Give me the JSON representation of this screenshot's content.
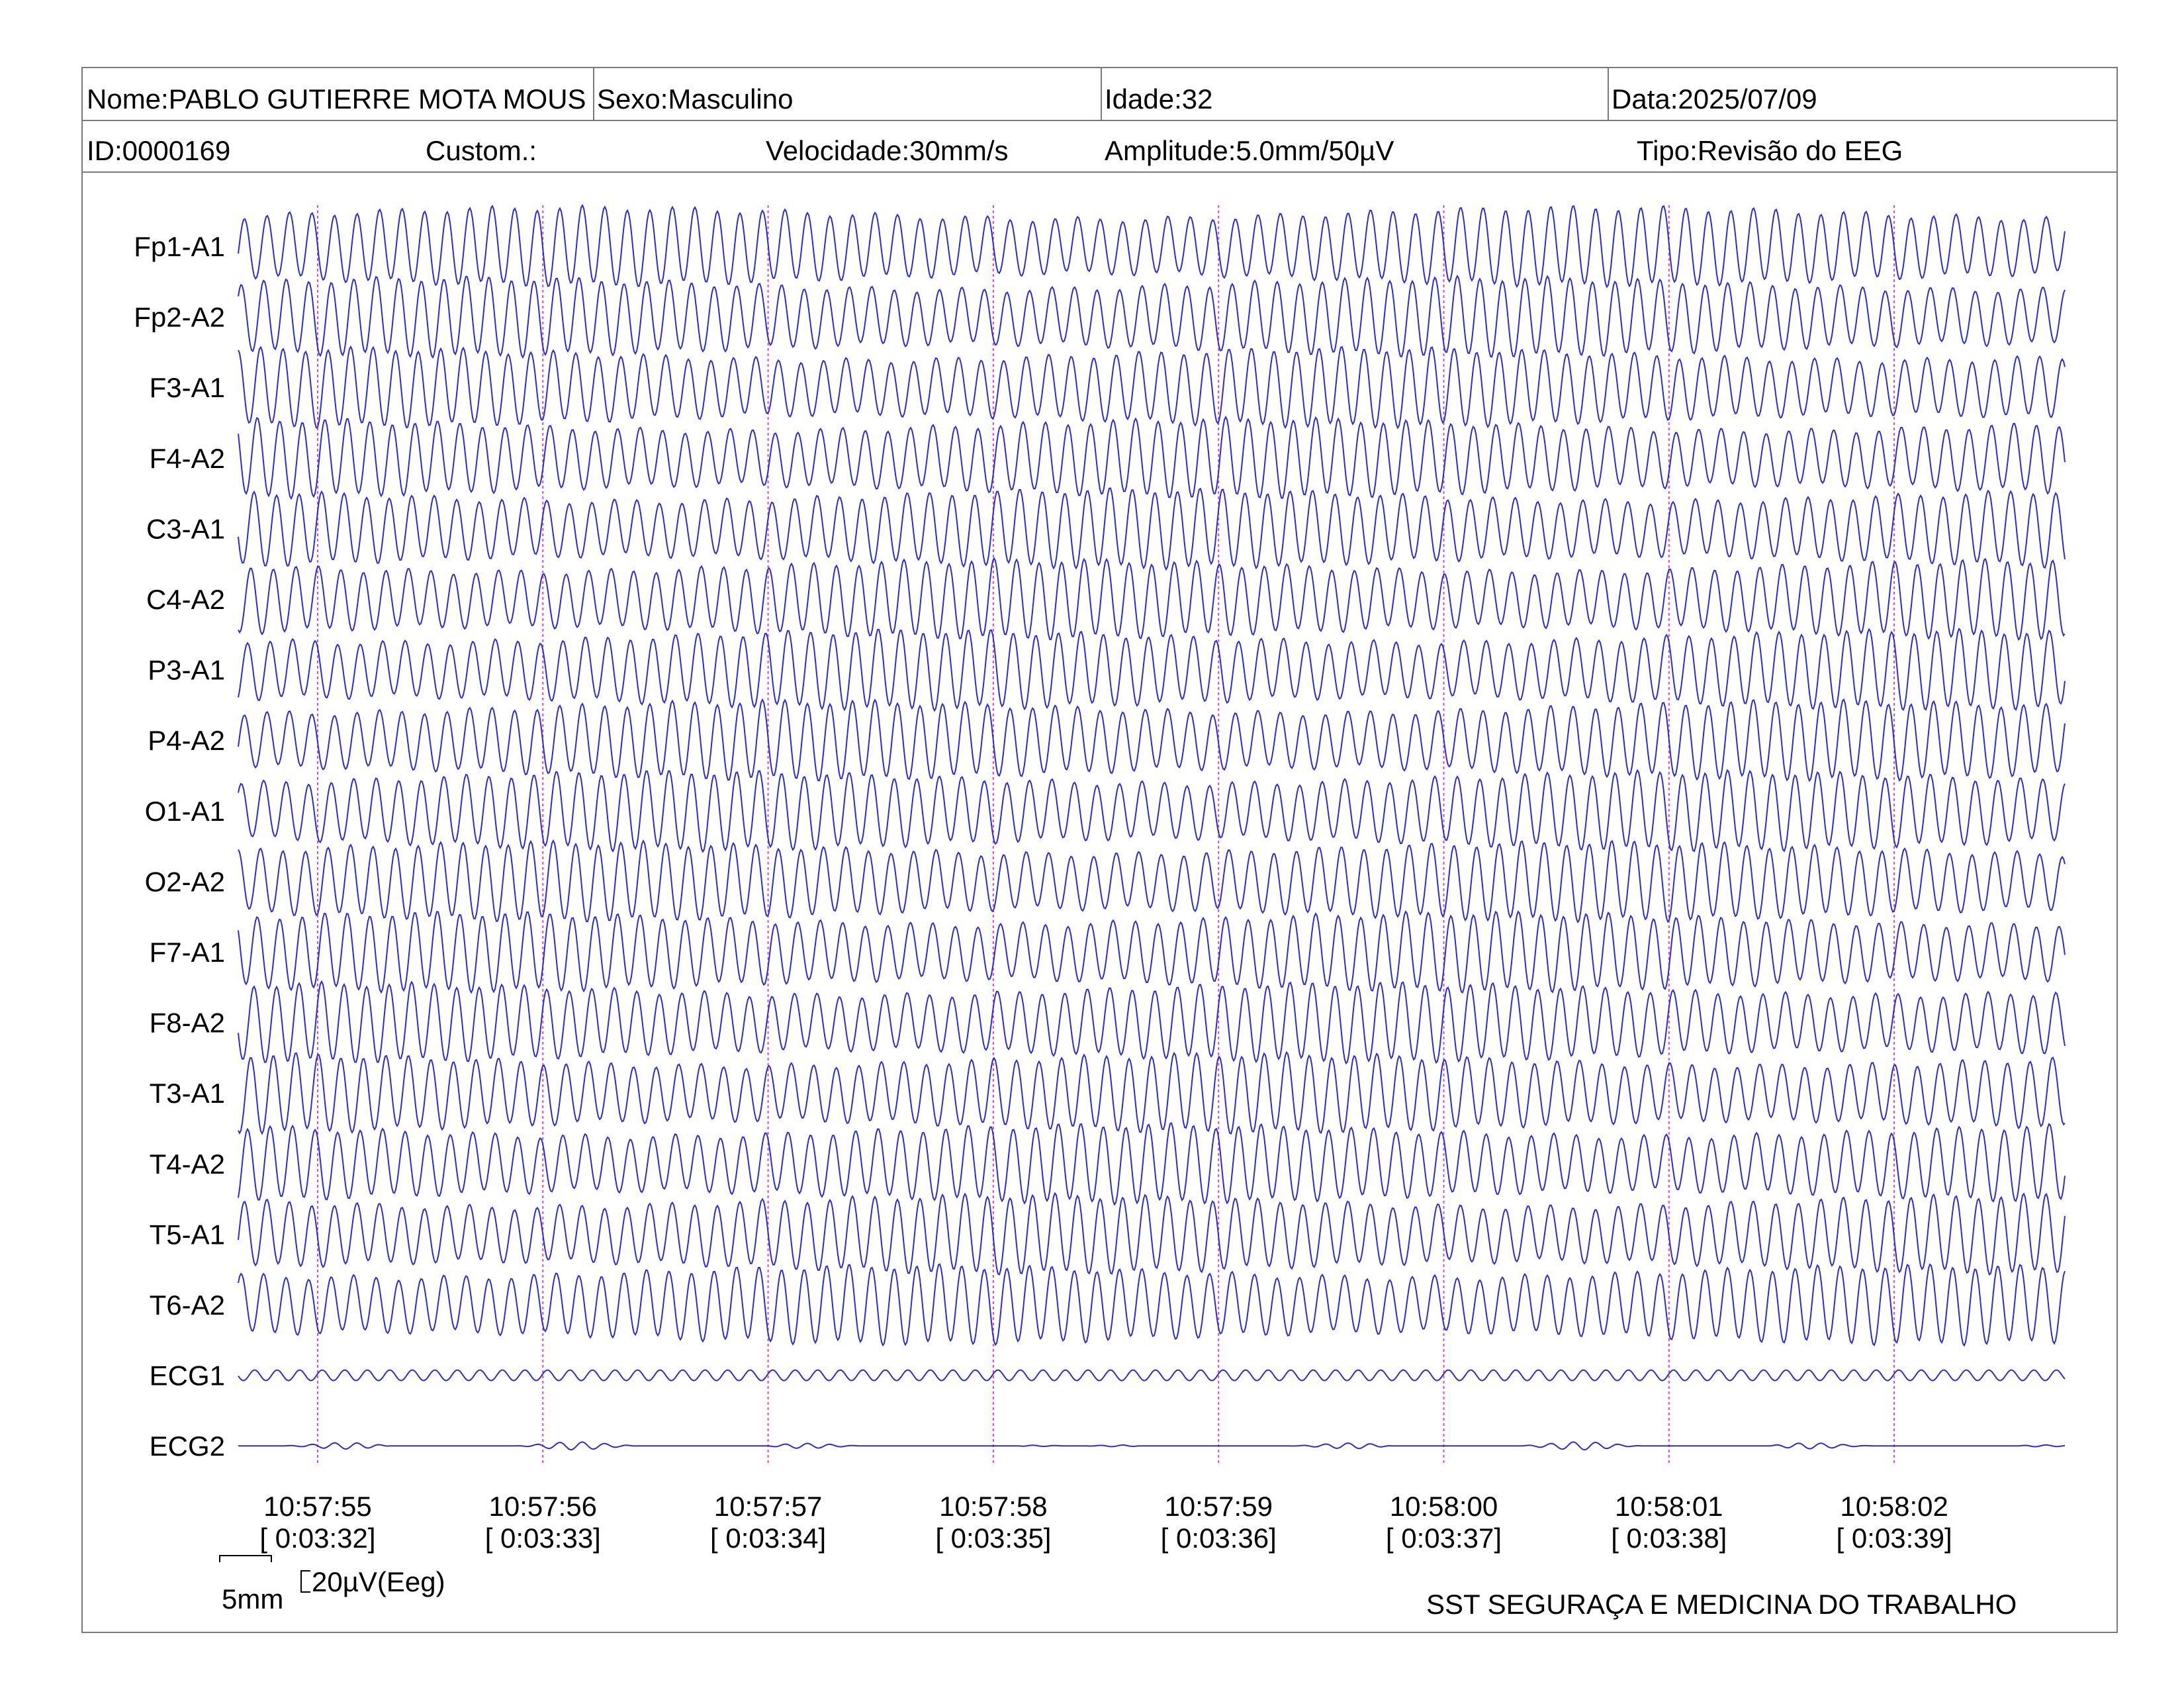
{
  "header": {
    "name": "Nome:PABLO GUTIERRE MOTA MOUS",
    "sex": "Sexo:Masculino",
    "age": "Idade:32",
    "date": "Data:2025/07/09",
    "id": "ID:0000169",
    "custom": "Custom.:",
    "speed": "Velocidade:30mm/s",
    "amplitude": "Amplitude:5.0mm/50µV",
    "type": "Tipo:Revisão do EEG"
  },
  "scale": {
    "time_label": "5mm",
    "amp_label": "20µV(Eeg)"
  },
  "footer": {
    "org": "SST SEGURAÇA E MEDICINA DO TRABALHO"
  },
  "colors": {
    "trace": "#2b2bd6",
    "marker": "#d24bd2",
    "border": "#7a7a7a"
  },
  "chart_data": {
    "type": "line",
    "channels": [
      "Fp1-A1",
      "Fp2-A2",
      "F3-A1",
      "F4-A2",
      "C3-A1",
      "C4-A2",
      "P3-A1",
      "P4-A2",
      "O1-A1",
      "O2-A2",
      "F7-A1",
      "F8-A2",
      "T3-A1",
      "T4-A2",
      "T5-A1",
      "T6-A2",
      "ECG1",
      "ECG2"
    ],
    "time_ticks": [
      {
        "clock": "10:57:55",
        "elapsed": "[ 0:03:32]"
      },
      {
        "clock": "10:57:56",
        "elapsed": "[ 0:03:33]"
      },
      {
        "clock": "10:57:57",
        "elapsed": "[ 0:03:34]"
      },
      {
        "clock": "10:57:58",
        "elapsed": "[ 0:03:35]"
      },
      {
        "clock": "10:57:59",
        "elapsed": "[ 0:03:36]"
      },
      {
        "clock": "10:58:00",
        "elapsed": "[ 0:03:37]"
      },
      {
        "clock": "10:58:01",
        "elapsed": "[ 0:03:38]"
      },
      {
        "clock": "10:58:02",
        "elapsed": "[ 0:03:39]"
      }
    ],
    "x_range_seconds": [
      -0.35,
      7.75
    ],
    "eeg_frequency_hz": 10,
    "grid": false,
    "legend": "none"
  }
}
